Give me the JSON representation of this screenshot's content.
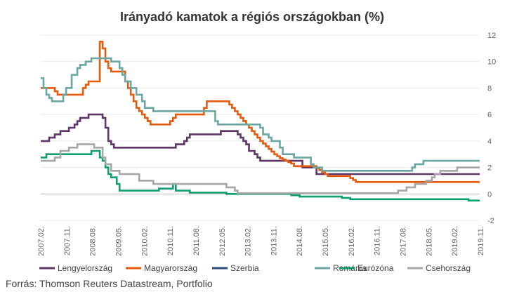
{
  "chart_data": {
    "type": "line",
    "title": "Irányadó kamatok a régiós országokban (%)",
    "xlabel": "",
    "ylabel": "",
    "ylim": [
      -2,
      12
    ],
    "y_ticks": [
      12,
      10,
      8,
      6,
      4,
      2,
      0,
      -2
    ],
    "x_ticks": [
      "2007.02.",
      "2007.11.",
      "2008.08.",
      "2009.05.",
      "2010.02.",
      "2010.11.",
      "2011.08.",
      "2012.05.",
      "2013.02.",
      "2013.11.",
      "2014.08.",
      "2015.05.",
      "2016.02.",
      "2016.11.",
      "2017.08.",
      "2018.05.",
      "2019.02.",
      "2019.11."
    ],
    "x_range": [
      "2007-01",
      "2020-01"
    ],
    "y_axis_position": "right",
    "grid": "horizontal",
    "legend_position": "bottom",
    "series": [
      {
        "name": "Lengyelország",
        "color": "#5c3566",
        "step": true,
        "points": [
          [
            "2007-01",
            4.0
          ],
          [
            "2007-04",
            4.25
          ],
          [
            "2007-06",
            4.5
          ],
          [
            "2007-08",
            4.75
          ],
          [
            "2007-11",
            5.0
          ],
          [
            "2008-01",
            5.25
          ],
          [
            "2008-02",
            5.5
          ],
          [
            "2008-03",
            5.75
          ],
          [
            "2008-06",
            6.0
          ],
          [
            "2008-11",
            5.75
          ],
          [
            "2008-12",
            5.0
          ],
          [
            "2009-01",
            4.0
          ],
          [
            "2009-02",
            3.75
          ],
          [
            "2009-03",
            3.5
          ],
          [
            "2011-01",
            3.75
          ],
          [
            "2011-04",
            4.0
          ],
          [
            "2011-05",
            4.25
          ],
          [
            "2011-06",
            4.5
          ],
          [
            "2012-05",
            4.75
          ],
          [
            "2012-11",
            4.5
          ],
          [
            "2012-12",
            4.25
          ],
          [
            "2013-01",
            4.0
          ],
          [
            "2013-02",
            3.75
          ],
          [
            "2013-03",
            3.25
          ],
          [
            "2013-05",
            3.0
          ],
          [
            "2013-06",
            2.75
          ],
          [
            "2013-07",
            2.5
          ],
          [
            "2014-10",
            2.0
          ],
          [
            "2015-03",
            1.5
          ],
          [
            "2020-01",
            1.5
          ]
        ]
      },
      {
        "name": "Magyarország",
        "color": "#e8590c",
        "step": true,
        "points": [
          [
            "2007-01",
            8.0
          ],
          [
            "2007-06",
            7.75
          ],
          [
            "2007-07",
            7.5
          ],
          [
            "2007-09",
            7.5
          ],
          [
            "2008-04",
            8.0
          ],
          [
            "2008-05",
            8.25
          ],
          [
            "2008-06",
            8.5
          ],
          [
            "2008-10",
            11.5
          ],
          [
            "2008-11",
            11.0
          ],
          [
            "2008-12",
            10.0
          ],
          [
            "2009-01",
            9.5
          ],
          [
            "2009-02",
            9.25
          ],
          [
            "2009-07",
            8.5
          ],
          [
            "2009-08",
            8.0
          ],
          [
            "2009-09",
            7.5
          ],
          [
            "2009-10",
            7.0
          ],
          [
            "2009-11",
            6.5
          ],
          [
            "2009-12",
            6.25
          ],
          [
            "2010-01",
            6.0
          ],
          [
            "2010-02",
            5.75
          ],
          [
            "2010-03",
            5.5
          ],
          [
            "2010-04",
            5.25
          ],
          [
            "2010-11",
            5.5
          ],
          [
            "2010-12",
            5.75
          ],
          [
            "2011-01",
            6.0
          ],
          [
            "2011-11",
            6.5
          ],
          [
            "2011-12",
            7.0
          ],
          [
            "2012-08",
            6.75
          ],
          [
            "2012-09",
            6.5
          ],
          [
            "2012-10",
            6.25
          ],
          [
            "2012-11",
            6.0
          ],
          [
            "2012-12",
            5.75
          ],
          [
            "2013-01",
            5.5
          ],
          [
            "2013-02",
            5.25
          ],
          [
            "2013-03",
            5.0
          ],
          [
            "2013-04",
            4.75
          ],
          [
            "2013-05",
            4.5
          ],
          [
            "2013-06",
            4.25
          ],
          [
            "2013-07",
            4.0
          ],
          [
            "2013-08",
            3.8
          ],
          [
            "2013-09",
            3.6
          ],
          [
            "2013-10",
            3.4
          ],
          [
            "2013-11",
            3.2
          ],
          [
            "2013-12",
            3.0
          ],
          [
            "2014-01",
            2.85
          ],
          [
            "2014-02",
            2.7
          ],
          [
            "2014-03",
            2.6
          ],
          [
            "2014-04",
            2.5
          ],
          [
            "2014-05",
            2.4
          ],
          [
            "2014-06",
            2.3
          ],
          [
            "2014-07",
            2.1
          ],
          [
            "2015-03",
            1.95
          ],
          [
            "2015-04",
            1.8
          ],
          [
            "2015-05",
            1.65
          ],
          [
            "2015-06",
            1.5
          ],
          [
            "2015-07",
            1.35
          ],
          [
            "2016-03",
            1.2
          ],
          [
            "2016-04",
            1.05
          ],
          [
            "2016-05",
            0.9
          ],
          [
            "2020-01",
            0.9
          ]
        ]
      },
      {
        "name": "Szerbia",
        "color": "#2c4a7c",
        "step": true,
        "points": []
      },
      {
        "name": "Románia",
        "color": "#6aa7a4",
        "step": true,
        "points": [
          [
            "2007-01",
            8.75
          ],
          [
            "2007-02",
            8.0
          ],
          [
            "2007-03",
            7.5
          ],
          [
            "2007-04",
            7.25
          ],
          [
            "2007-05",
            7.0
          ],
          [
            "2007-09",
            7.5
          ],
          [
            "2007-10",
            8.0
          ],
          [
            "2007-12",
            9.0
          ],
          [
            "2008-02",
            9.5
          ],
          [
            "2008-03",
            9.75
          ],
          [
            "2008-05",
            10.0
          ],
          [
            "2008-07",
            10.25
          ],
          [
            "2009-02",
            10.0
          ],
          [
            "2009-05",
            9.5
          ],
          [
            "2009-06",
            9.0
          ],
          [
            "2009-07",
            8.5
          ],
          [
            "2009-09",
            8.0
          ],
          [
            "2009-11",
            7.5
          ],
          [
            "2010-01",
            7.0
          ],
          [
            "2010-02",
            6.5
          ],
          [
            "2010-05",
            6.25
          ],
          [
            "2012-03",
            5.5
          ],
          [
            "2012-04",
            5.25
          ],
          [
            "2013-07",
            5.0
          ],
          [
            "2013-08",
            4.5
          ],
          [
            "2013-10",
            4.25
          ],
          [
            "2013-11",
            4.0
          ],
          [
            "2014-02",
            3.5
          ],
          [
            "2014-03",
            3.0
          ],
          [
            "2014-07",
            2.75
          ],
          [
            "2015-01",
            2.25
          ],
          [
            "2015-02",
            2.0
          ],
          [
            "2015-05",
            1.75
          ],
          [
            "2018-01",
            2.0
          ],
          [
            "2018-02",
            2.25
          ],
          [
            "2018-05",
            2.5
          ],
          [
            "2020-01",
            2.5
          ]
        ]
      },
      {
        "name": "Eurózóna",
        "color": "#0e9f6e",
        "step": true,
        "points": [
          [
            "2007-01",
            2.75
          ],
          [
            "2007-03",
            3.0
          ],
          [
            "2008-07",
            3.25
          ],
          [
            "2008-10",
            2.75
          ],
          [
            "2008-11",
            2.5
          ],
          [
            "2008-12",
            2.0
          ],
          [
            "2009-01",
            1.5
          ],
          [
            "2009-02",
            1.25
          ],
          [
            "2009-04",
            0.75
          ],
          [
            "2009-05",
            0.25
          ],
          [
            "2010-07",
            0.4
          ],
          [
            "2010-12",
            0.75
          ],
          [
            "2011-01",
            0.25
          ],
          [
            "2011-06",
            0.1
          ],
          [
            "2012-07",
            0.0
          ],
          [
            "2014-06",
            -0.1
          ],
          [
            "2014-09",
            -0.2
          ],
          [
            "2015-12",
            -0.3
          ],
          [
            "2016-03",
            -0.4
          ],
          [
            "2019-09",
            -0.5
          ],
          [
            "2020-01",
            -0.5
          ]
        ]
      },
      {
        "name": "Csehország",
        "color": "#a6a6a6",
        "step": true,
        "points": [
          [
            "2007-01",
            2.5
          ],
          [
            "2007-06",
            2.75
          ],
          [
            "2007-08",
            3.25
          ],
          [
            "2007-11",
            3.5
          ],
          [
            "2008-02",
            3.75
          ],
          [
            "2008-08",
            3.5
          ],
          [
            "2008-11",
            2.75
          ],
          [
            "2008-12",
            2.25
          ],
          [
            "2009-02",
            1.75
          ],
          [
            "2009-05",
            1.5
          ],
          [
            "2009-12",
            1.0
          ],
          [
            "2010-05",
            0.75
          ],
          [
            "2012-07",
            0.5
          ],
          [
            "2012-10",
            0.25
          ],
          [
            "2012-11",
            0.05
          ],
          [
            "2017-08",
            0.25
          ],
          [
            "2017-11",
            0.5
          ],
          [
            "2018-02",
            0.75
          ],
          [
            "2018-06",
            1.0
          ],
          [
            "2018-08",
            1.25
          ],
          [
            "2018-09",
            1.5
          ],
          [
            "2018-11",
            1.75
          ],
          [
            "2019-05",
            2.0
          ],
          [
            "2020-01",
            2.0
          ]
        ]
      }
    ]
  },
  "source": "Forrás: Thomson Reuters Datastream, Portfolio"
}
